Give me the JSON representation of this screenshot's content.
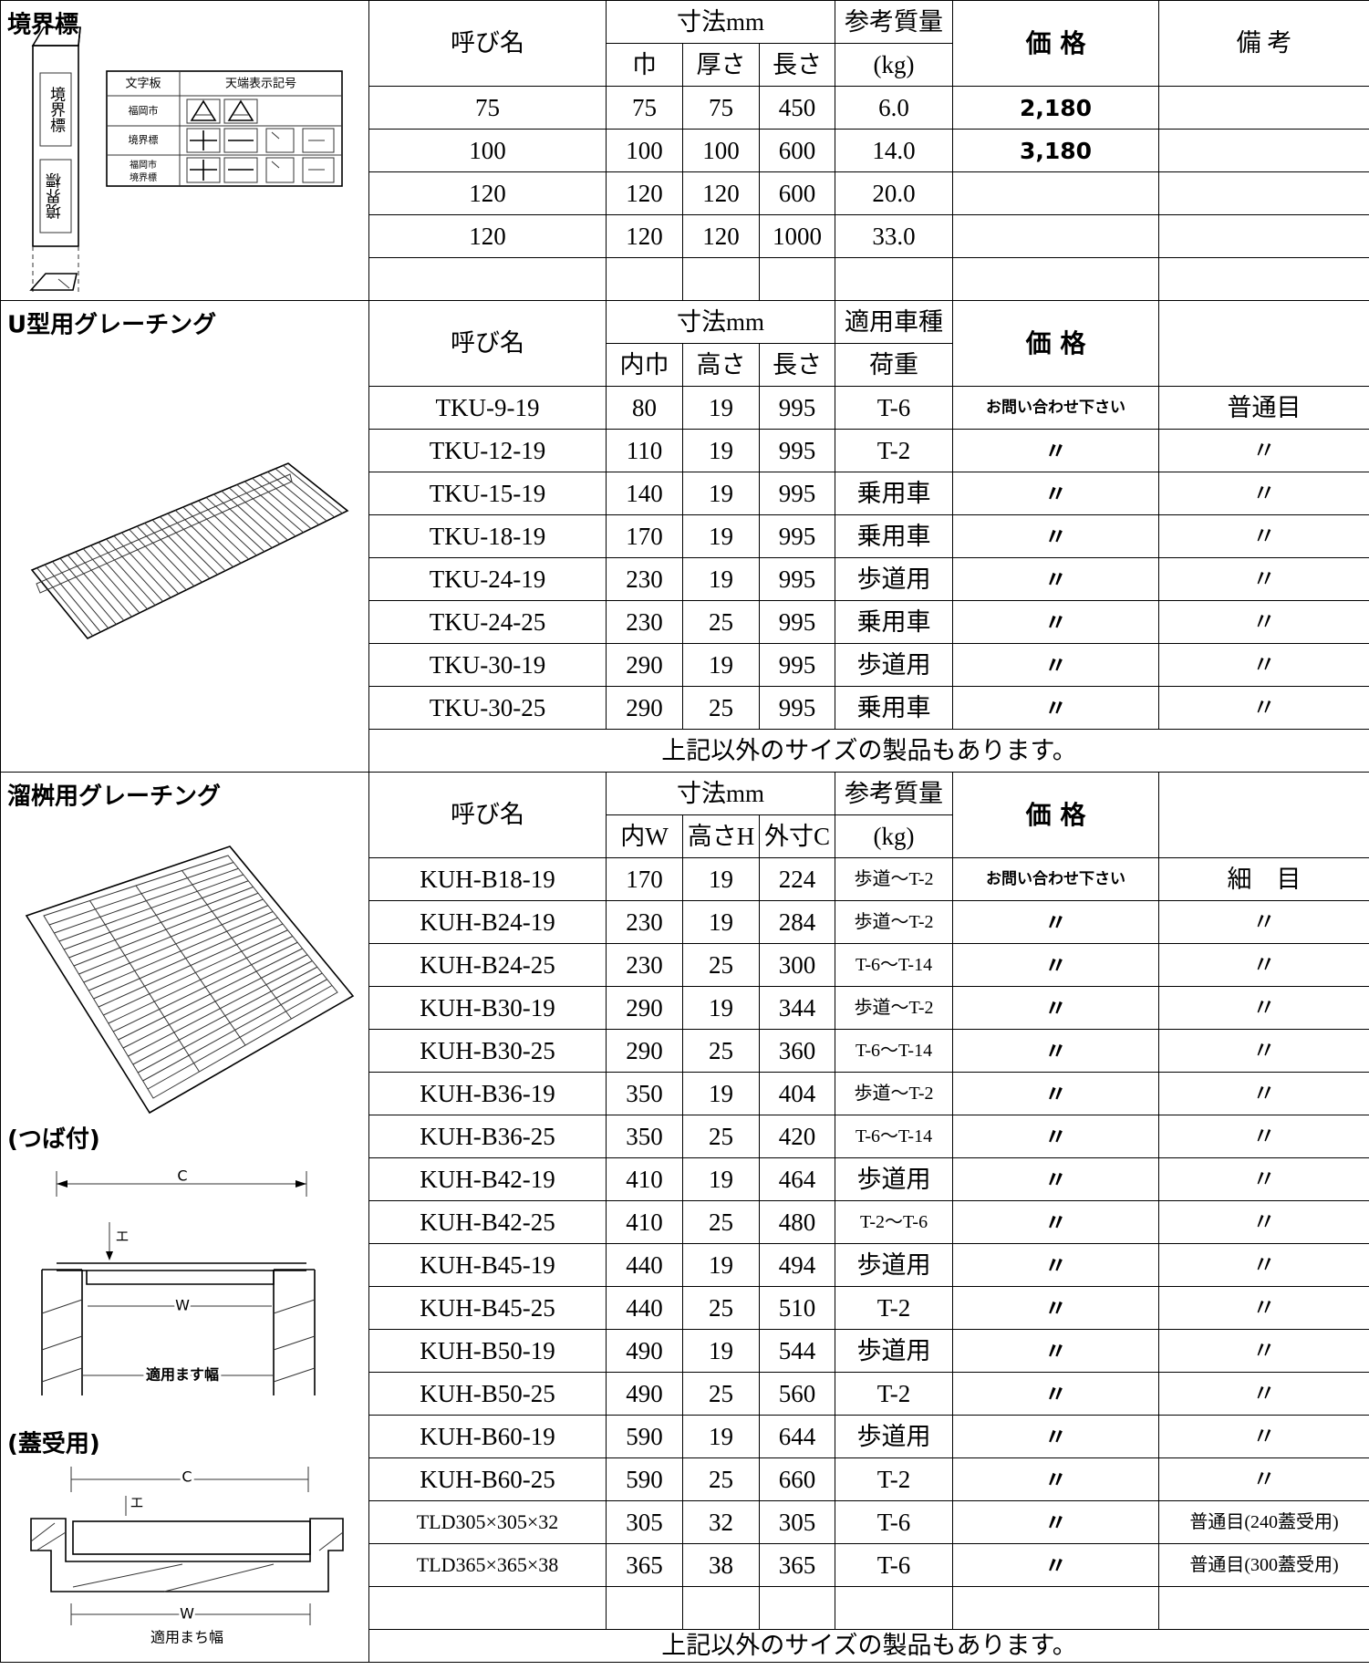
{
  "sections": [
    {
      "title": "境界標",
      "header": {
        "name": "呼び名",
        "dims": "寸法mm",
        "dim_cols": [
          "巾",
          "厚さ",
          "長さ"
        ],
        "col4": [
          "参考質量",
          "(kg)"
        ],
        "price": "価 格",
        "remarks": "備 考"
      },
      "rows": [
        [
          "75",
          "75",
          "75",
          "450",
          "6.0",
          "2,180"
        ],
        [
          "100",
          "100",
          "100",
          "600",
          "14.0",
          "3,180"
        ],
        [
          "120",
          "120",
          "120",
          "600",
          "20.0"
        ],
        [
          "120",
          "120",
          "120",
          "1000",
          "33.0"
        ]
      ],
      "illustration": {
        "post_text": "境界標",
        "plate_header": [
          "文字板",
          "天端表示記号"
        ],
        "plates": [
          "福岡市",
          "境界標"
        ],
        "combined_plate": [
          "福岡市",
          "境界標"
        ]
      }
    },
    {
      "title": "U型用グレーチング",
      "header": {
        "name": "呼び名",
        "dims": "寸法mm",
        "dim_cols": [
          "内巾",
          "高さ",
          "長さ"
        ],
        "col4": [
          "適用車種",
          "荷重"
        ],
        "price": "価 格"
      },
      "rows": [
        [
          "TKU-9-19",
          "80",
          "19",
          "995",
          "T-6",
          "お問い合わせ下さい",
          "普通目"
        ],
        [
          "TKU-12-19",
          "110",
          "19",
          "995",
          "T-2",
          "〃",
          "〃"
        ],
        [
          "TKU-15-19",
          "140",
          "19",
          "995",
          "乗用車",
          "〃",
          "〃"
        ],
        [
          "TKU-18-19",
          "170",
          "19",
          "995",
          "乗用車",
          "〃",
          "〃"
        ],
        [
          "TKU-24-19",
          "230",
          "19",
          "995",
          "歩道用",
          "〃",
          "〃"
        ],
        [
          "TKU-24-25",
          "230",
          "25",
          "995",
          "乗用車",
          "〃",
          "〃"
        ],
        [
          "TKU-30-19",
          "290",
          "19",
          "995",
          "歩道用",
          "〃",
          "〃"
        ],
        [
          "TKU-30-25",
          "290",
          "25",
          "995",
          "乗用車",
          "〃",
          "〃"
        ]
      ],
      "note": "上記以外のサイズの製品もあります。"
    },
    {
      "title": "溜桝用グレーチング",
      "header": {
        "name": "呼び名",
        "dims": "寸法mm",
        "dim_cols": [
          "内W",
          "高さH",
          "外寸C"
        ],
        "col4": [
          "参考質量",
          "(kg)"
        ],
        "price": "価 格"
      },
      "rows": [
        [
          "KUH-B18-19",
          "170",
          "19",
          "224",
          "歩道〜T-2",
          "お問い合わせ下さい",
          "細　目"
        ],
        [
          "KUH-B24-19",
          "230",
          "19",
          "284",
          "歩道〜T-2",
          "〃",
          "〃"
        ],
        [
          "KUH-B24-25",
          "230",
          "25",
          "300",
          "T-6〜T-14",
          "〃",
          "〃"
        ],
        [
          "KUH-B30-19",
          "290",
          "19",
          "344",
          "歩道〜T-2",
          "〃",
          "〃"
        ],
        [
          "KUH-B30-25",
          "290",
          "25",
          "360",
          "T-6〜T-14",
          "〃",
          "〃"
        ],
        [
          "KUH-B36-19",
          "350",
          "19",
          "404",
          "歩道〜T-2",
          "〃",
          "〃"
        ],
        [
          "KUH-B36-25",
          "350",
          "25",
          "420",
          "T-6〜T-14",
          "〃",
          "〃"
        ],
        [
          "KUH-B42-19",
          "410",
          "19",
          "464",
          "歩道用",
          "〃",
          "〃"
        ],
        [
          "KUH-B42-25",
          "410",
          "25",
          "480",
          "T-2〜T-6",
          "〃",
          "〃"
        ],
        [
          "KUH-B45-19",
          "440",
          "19",
          "494",
          "歩道用",
          "〃",
          "〃"
        ],
        [
          "KUH-B45-25",
          "440",
          "25",
          "510",
          "T-2",
          "〃",
          "〃"
        ],
        [
          "KUH-B50-19",
          "490",
          "19",
          "544",
          "歩道用",
          "〃",
          "〃"
        ],
        [
          "KUH-B50-25",
          "490",
          "25",
          "560",
          "T-2",
          "〃",
          "〃"
        ],
        [
          "KUH-B60-19",
          "590",
          "19",
          "644",
          "歩道用",
          "〃",
          "〃"
        ],
        [
          "KUH-B60-25",
          "590",
          "25",
          "660",
          "T-2",
          "〃",
          "〃"
        ],
        [
          "TLD305×305×32",
          "305",
          "32",
          "305",
          "T-6",
          "〃",
          "普通目(240蓋受用)"
        ],
        [
          "TLD365×365×38",
          "365",
          "38",
          "365",
          "T-6",
          "〃",
          "普通目(300蓋受用)"
        ]
      ],
      "note": "上記以外のサイズの製品もあります。",
      "diagrams": [
        {
          "label": "(つば付)",
          "c": "C",
          "e": "エ",
          "w": "W",
          "width_label": "適用ます幅"
        },
        {
          "label": "(蓋受用)",
          "c": "C",
          "e": "エ",
          "w": "W",
          "width_label": "適用まち幅"
        }
      ]
    }
  ]
}
